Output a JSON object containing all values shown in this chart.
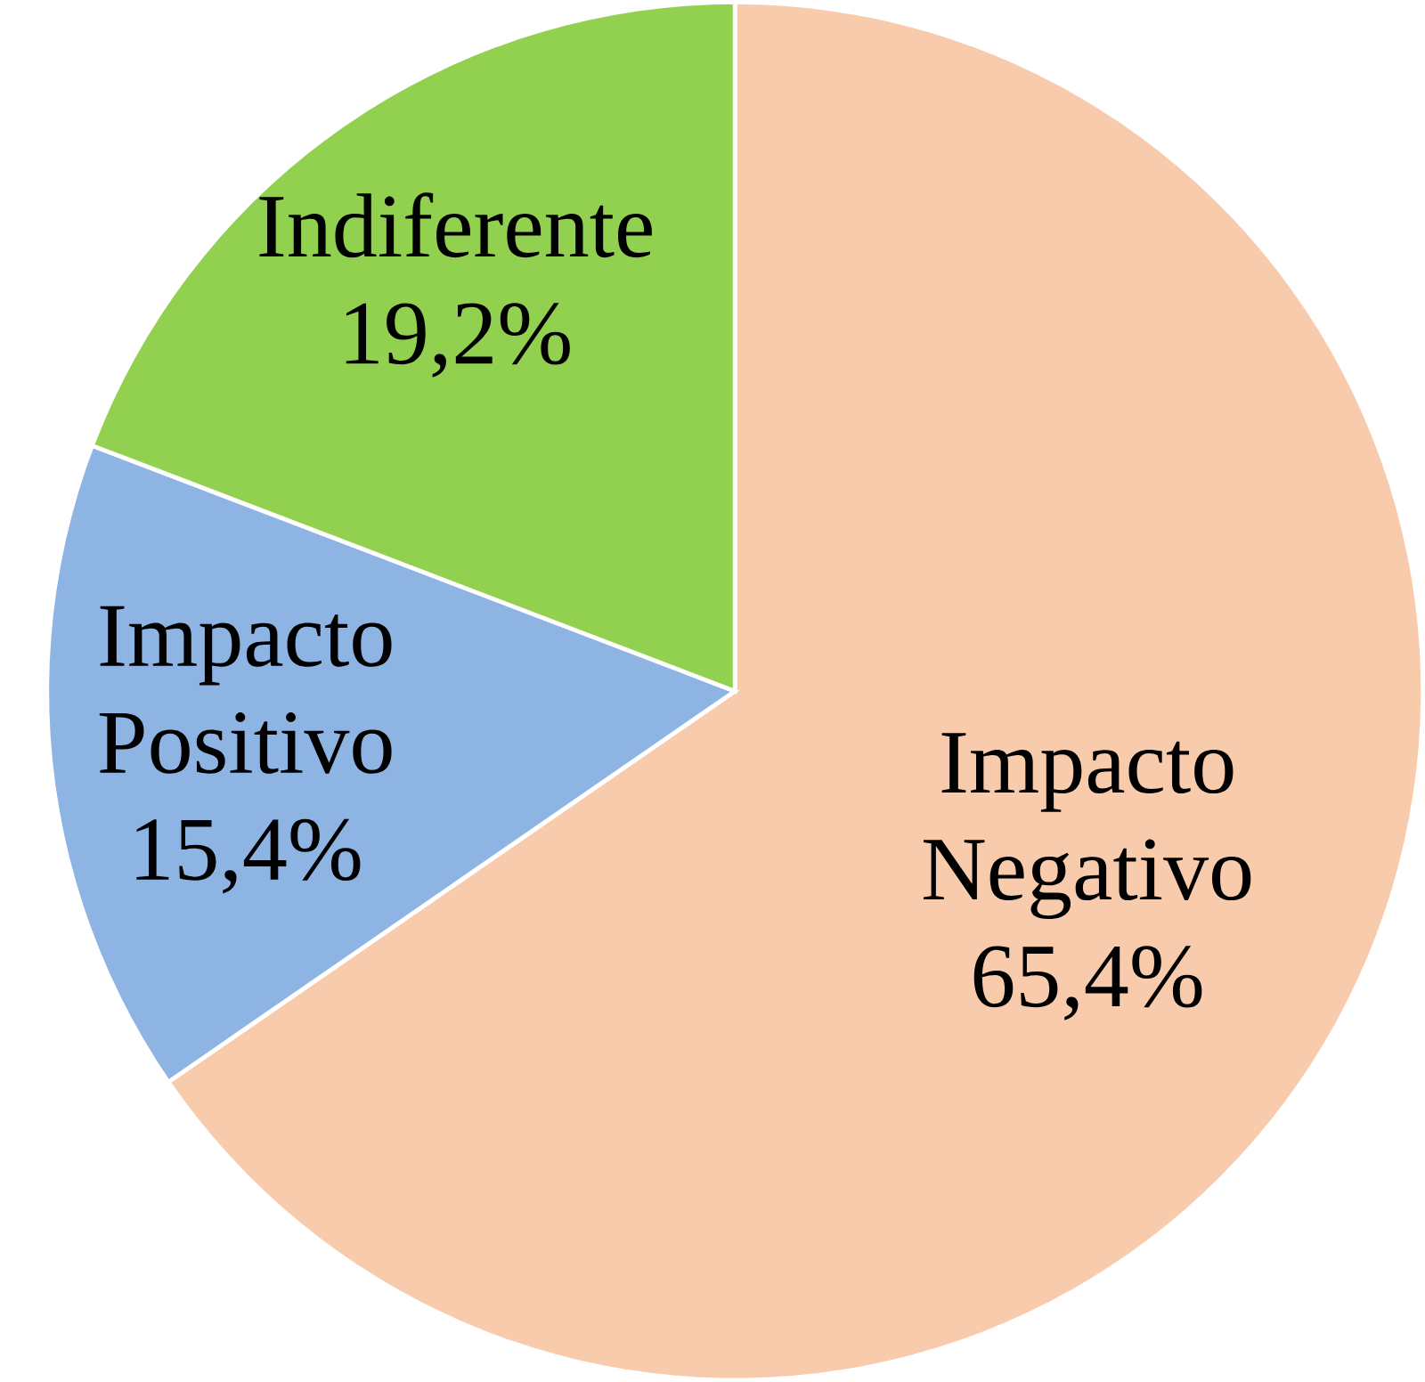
{
  "chart_data": {
    "type": "pie",
    "categories": [
      "Impacto Negativo",
      "Impacto Positivo",
      "Indiferente"
    ],
    "values": [
      65.4,
      15.4,
      19.2
    ],
    "value_labels": [
      "65,4%",
      "15,4%",
      "19,2%"
    ],
    "colors": [
      "#f8cbad",
      "#8eb4e3",
      "#92d050"
    ]
  }
}
